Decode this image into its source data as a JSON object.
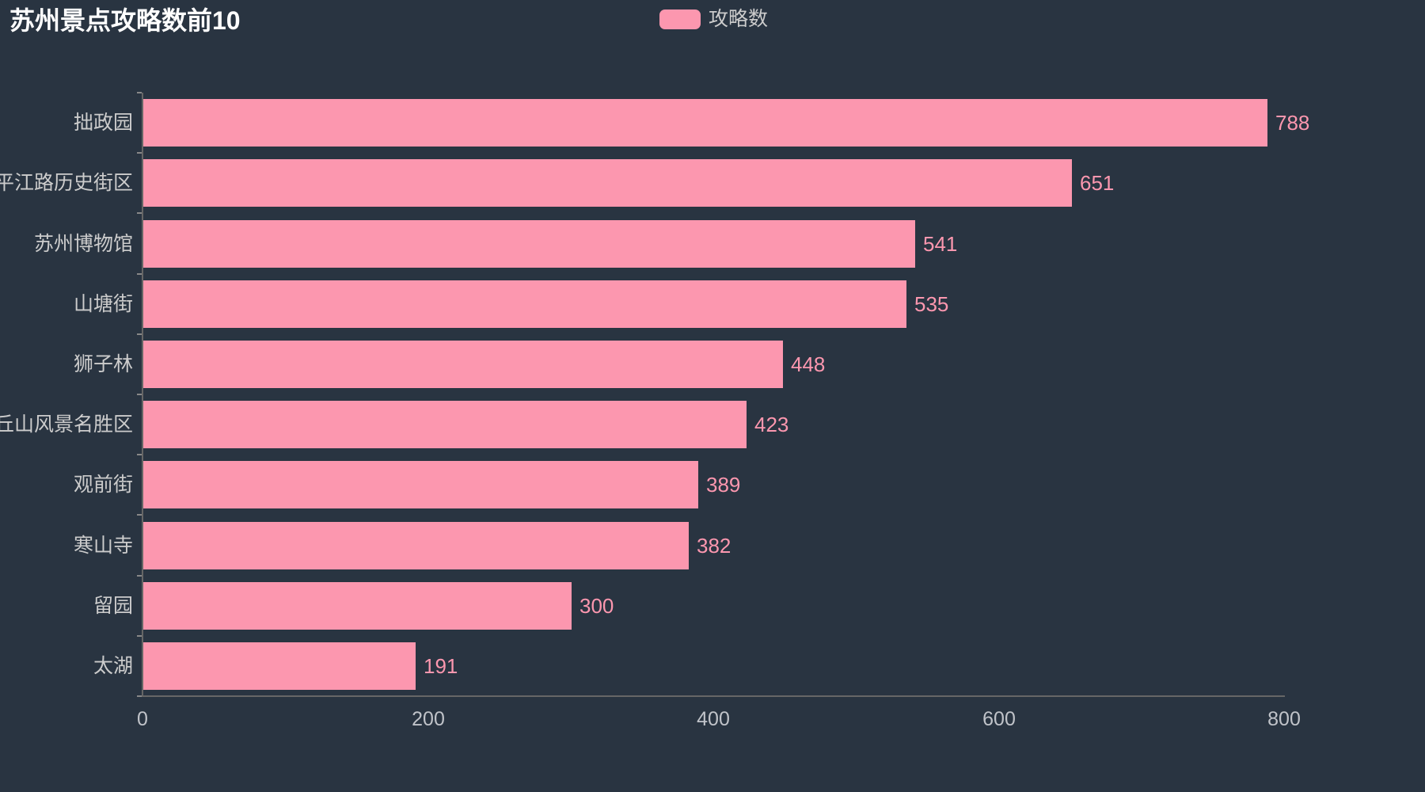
{
  "title": "苏州景点攻略数前10",
  "legend": {
    "label": "攻略数"
  },
  "colors": {
    "background": "#293441",
    "bar": "#fc97af",
    "title_text": "#ffffff",
    "axis_line": "#666666",
    "axis_tick": "#888888",
    "y_axis_label": "#cccccc",
    "x_axis_label": "#c0c3c9",
    "value_label": "#fc97af",
    "legend_text": "#cccccc"
  },
  "chart_data": {
    "type": "bar",
    "orientation": "horizontal",
    "title": "苏州景点攻略数前10",
    "legend_entries": [
      "攻略数"
    ],
    "legend_position": "top-center",
    "categories": [
      "拙政园",
      "平江路历史街区",
      "苏州博物馆",
      "山塘街",
      "狮子林",
      "虎丘山风景名胜区",
      "观前街",
      "寒山寺",
      "留园",
      "太湖"
    ],
    "series": [
      {
        "name": "攻略数",
        "values": [
          788,
          651,
          541,
          535,
          448,
          423,
          389,
          382,
          300,
          191
        ]
      }
    ],
    "value_labels_shown": true,
    "xlabel": "",
    "ylabel": "",
    "xlim": [
      0,
      800
    ],
    "x_ticks": [
      0,
      200,
      400,
      600,
      800
    ],
    "grid": false,
    "category_order": "top-to-bottom-descending"
  }
}
